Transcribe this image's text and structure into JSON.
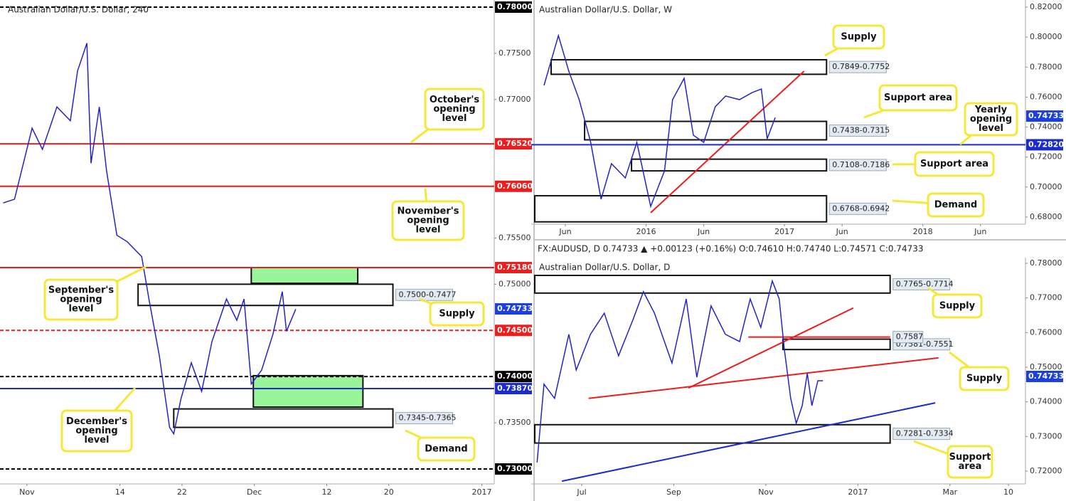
{
  "chart_data": [
    {
      "type": "line",
      "title": "Australian Dollar/U.S. Dollar, 240",
      "xlim": [
        -2.26,
        45.2
      ],
      "ylim": [
        0.72838,
        0.78077
      ],
      "xticks": [
        {
          "value": 0,
          "label": "Nov"
        },
        {
          "value": 9,
          "label": "14"
        },
        {
          "value": 15,
          "label": "22"
        },
        {
          "value": 22,
          "label": "Dec"
        },
        {
          "value": 29,
          "label": "12"
        },
        {
          "value": 35,
          "label": "20"
        },
        {
          "value": 44,
          "label": "2017"
        }
      ],
      "yticks": [
        {
          "value": 0.735,
          "label": "0.73500"
        },
        {
          "value": 0.75,
          "label": "0.75000"
        },
        {
          "value": 0.755,
          "label": "0.75500"
        },
        {
          "value": 0.77,
          "label": "0.77000"
        },
        {
          "value": 0.775,
          "label": "0.77500"
        }
      ],
      "series": [
        {
          "color": "#2323c8",
          "x": [
            -2.3,
            -1.2,
            0.5,
            1.5,
            2.9,
            4.2,
            4.9,
            5.8,
            6.2,
            7.0,
            7.7,
            8.7,
            9.7,
            11.1,
            11.8,
            12.8,
            13.8,
            14.2,
            14.9,
            15.9,
            16.9,
            17.9,
            19.3,
            20.3,
            21.0,
            21.7,
            22.7,
            23.8,
            24.7,
            25.1,
            26.0
          ],
          "values": [
            0.7588,
            0.7592,
            0.7669,
            0.7646,
            0.7692,
            0.7677,
            0.7731,
            0.7761,
            0.7631,
            0.7692,
            0.7623,
            0.7553,
            0.7546,
            0.753,
            0.7484,
            0.7423,
            0.7345,
            0.7338,
            0.7376,
            0.7415,
            0.7384,
            0.7438,
            0.7484,
            0.7461,
            0.7484,
            0.7392,
            0.7407,
            0.7446,
            0.7492,
            0.7449,
            0.7473
          ]
        }
      ],
      "levels": [
        {
          "value": 0.78,
          "label": "0.78000",
          "color": "#000000",
          "dashed": true
        },
        {
          "value": 0.7652,
          "label": "0.76520",
          "color": "#ee1c1c",
          "dashed": false
        },
        {
          "value": 0.7606,
          "label": "0.76060",
          "color": "#ee1c1c",
          "dashed": false
        },
        {
          "value": 0.7518,
          "label": "0.75180",
          "color": "#ee1c1c",
          "dashed": false
        },
        {
          "value": 0.745,
          "label": "0.74500",
          "color": "#ee1c1c",
          "dashed": true
        },
        {
          "value": 0.74,
          "label": "0.74000",
          "color": "#000000",
          "dashed": true
        },
        {
          "value": 0.7387,
          "label": "0.73870",
          "color": "#1c2ccc",
          "dashed": false
        },
        {
          "value": 0.73,
          "label": "0.73000",
          "color": "#000000",
          "dashed": true
        }
      ],
      "last_price": {
        "value": 0.74733,
        "label": "0.74733",
        "color": "#1c3fe0"
      },
      "zones": [
        {
          "x": [
            10.75,
            35.4
          ],
          "y": [
            0.75,
            0.7477
          ],
          "label": "0.7500-0.7477",
          "fill": "none"
        },
        {
          "x": [
            21.7,
            32.0
          ],
          "y": [
            0.7518,
            0.7501
          ],
          "fill": "#99f59a"
        },
        {
          "x": [
            21.9,
            32.5
          ],
          "y": [
            0.7401,
            0.7367
          ],
          "fill": "#99f59a"
        },
        {
          "x": [
            14.2,
            35.4
          ],
          "y": [
            0.7345,
            0.7365
          ],
          "label": "0.7345-0.7365",
          "fill": "none"
        }
      ],
      "callouts": [
        [
          "October's",
          "opening",
          "level"
        ],
        [
          "November's",
          "opening",
          "level"
        ],
        [
          "September's",
          "opening",
          "level"
        ],
        [
          "Supply"
        ],
        [
          "December's",
          "opening",
          "level"
        ],
        [
          "Demand"
        ]
      ]
    },
    {
      "type": "line",
      "title": "Australian Dollar/U.S. Dollar, W",
      "xlim": [
        -2.65,
        39.9
      ],
      "ylim": [
        0.67525,
        0.82475
      ],
      "xticks": [
        {
          "value": 0,
          "label": "Jun"
        },
        {
          "value": 7,
          "label": "2016"
        },
        {
          "value": 12,
          "label": "Jun"
        },
        {
          "value": 19,
          "label": "2017"
        },
        {
          "value": 24,
          "label": "Jun"
        },
        {
          "value": 31,
          "label": "2018"
        },
        {
          "value": 36,
          "label": "Jun"
        }
      ],
      "yticks": [
        {
          "value": 0.68,
          "label": "0.68000"
        },
        {
          "value": 0.7,
          "label": "0.70000"
        },
        {
          "value": 0.72,
          "label": "0.72000"
        },
        {
          "value": 0.74,
          "label": "0.74000"
        },
        {
          "value": 0.76,
          "label": "0.76000"
        },
        {
          "value": 0.78,
          "label": "0.78000"
        },
        {
          "value": 0.8,
          "label": "0.80000"
        },
        {
          "value": 0.82,
          "label": "0.82000"
        }
      ],
      "series": [
        {
          "color": "#2323c8",
          "x": [
            -1.85,
            -0.6,
            0.3,
            1.2,
            2.2,
            3.1,
            4.0,
            5.2,
            6.2,
            7.4,
            8.6,
            9.3,
            10.3,
            11.1,
            12.0,
            13.0,
            13.9,
            15.1,
            16.2,
            17.0,
            17.5,
            18.2
          ],
          "values": [
            0.7678,
            0.801,
            0.7773,
            0.7583,
            0.7298,
            0.6919,
            0.7156,
            0.7061,
            0.7298,
            0.6871,
            0.7108,
            0.7583,
            0.7725,
            0.7346,
            0.7298,
            0.7536,
            0.7607,
            0.7583,
            0.763,
            0.7654,
            0.7322,
            0.7464
          ]
        }
      ],
      "levels": [
        {
          "value": 0.7282,
          "label": "0.72820",
          "color": "#1c2ccc",
          "dashed": false
        }
      ],
      "last_price": {
        "value": 0.74733,
        "label": "0.74733",
        "color": "#1c3fe0"
      },
      "zones": [
        {
          "x": [
            -1.23,
            22.65
          ],
          "y": [
            0.7849,
            0.7752
          ],
          "label": "0.7849-0.7752",
          "fill": "none"
        },
        {
          "x": [
            1.67,
            22.65
          ],
          "y": [
            0.7438,
            0.7315
          ],
          "label": "0.7438-0.7315",
          "fill": "none"
        },
        {
          "x": [
            5.74,
            22.65
          ],
          "y": [
            0.7108,
            0.7186
          ],
          "label": "0.7108-0.7186",
          "fill": "none"
        },
        {
          "x": [
            -2.65,
            22.65
          ],
          "y": [
            0.6768,
            0.6942
          ],
          "label": "0.6768-0.6942",
          "fill": "none"
        }
      ],
      "trendlines": [
        {
          "x": [
            7.4,
            20.7
          ],
          "y": [
            0.6829,
            0.7773
          ],
          "color": "#ee1c1c"
        }
      ],
      "callouts": [
        [
          "Supply"
        ],
        [
          "Support area"
        ],
        [
          "Yearly",
          "opening",
          "level"
        ],
        [
          "Support area"
        ],
        [
          "Demand"
        ]
      ]
    },
    {
      "type": "line",
      "title": "Australian Dollar/U.S. Dollar, D",
      "subtitle": "FX:AUDUSD, D  0.74733 ▲ +0.00123 (+0.16%)  O:0.74610  H:0.74740  L:0.74571  C:0.74733",
      "xlim": [
        -1.02,
        9.64
      ],
      "ylim": [
        0.7163,
        0.78164
      ],
      "xticks": [
        {
          "value": 0,
          "label": "Jul"
        },
        {
          "value": 2,
          "label": "Sep"
        },
        {
          "value": 4,
          "label": "Nov"
        },
        {
          "value": 6,
          "label": "2017"
        },
        {
          "value": 8,
          "label": "Mar"
        },
        {
          "value": 9.27,
          "label": "10"
        }
      ],
      "yticks": [
        {
          "value": 0.72,
          "label": "0.72000"
        },
        {
          "value": 0.73,
          "label": "0.73000"
        },
        {
          "value": 0.74,
          "label": "0.74000"
        },
        {
          "value": 0.75,
          "label": "0.75000"
        },
        {
          "value": 0.76,
          "label": "0.76000"
        },
        {
          "value": 0.77,
          "label": "0.77000"
        },
        {
          "value": 0.78,
          "label": "0.78000"
        }
      ],
      "series": [
        {
          "color": "#2323c8",
          "x": [
            -0.97,
            -0.82,
            -0.59,
            -0.28,
            -0.12,
            0.19,
            0.49,
            0.8,
            1.11,
            1.34,
            1.58,
            1.96,
            2.27,
            2.5,
            2.81,
            3.12,
            3.43,
            3.66,
            3.89,
            4.14,
            4.29,
            4.4,
            4.54,
            4.66,
            4.79,
            4.9,
            5.0,
            5.13,
            5.24
          ],
          "values": [
            0.7225,
            0.7451,
            0.741,
            0.7595,
            0.7492,
            0.7595,
            0.7656,
            0.7533,
            0.7636,
            0.7718,
            0.7656,
            0.7512,
            0.7697,
            0.7471,
            0.7677,
            0.7595,
            0.7574,
            0.7697,
            0.7615,
            0.7749,
            0.7697,
            0.7553,
            0.741,
            0.7338,
            0.7389,
            0.7482,
            0.7389,
            0.7461,
            0.7461
          ]
        }
      ],
      "levels": [],
      "last_price": {
        "value": 0.74733,
        "label": "0.74733",
        "color": "#1c3fe0"
      },
      "segments": [
        {
          "x": [
            3.62,
            6.7
          ],
          "value": 0.7587,
          "label": "0.7587",
          "color": "#ee1c1c"
        }
      ],
      "zones": [
        {
          "x": [
            -1.02,
            6.7
          ],
          "y": [
            0.7765,
            0.7714
          ],
          "label": "0.7765-0.7714",
          "fill": "none"
        },
        {
          "x": [
            4.37,
            6.7
          ],
          "y": [
            0.7581,
            0.7551
          ],
          "label": "0.7581-0.7551",
          "fill": "none"
        },
        {
          "x": [
            -1.02,
            6.7
          ],
          "y": [
            0.7281,
            0.7334
          ],
          "label": "0.7281-0.7334",
          "fill": "none"
        }
      ],
      "trendlines": [
        {
          "x": [
            0.15,
            7.75
          ],
          "y": [
            0.741,
            0.7527
          ],
          "color": "#ee1c1c"
        },
        {
          "x": [
            2.32,
            5.9
          ],
          "y": [
            0.744,
            0.7671
          ],
          "color": "#ee1c1c"
        },
        {
          "x": [
            -0.43,
            7.68
          ],
          "y": [
            0.7171,
            0.7397
          ],
          "color": "#1c2ccc"
        }
      ],
      "callouts": [
        [
          "Supply"
        ],
        [
          "Supply"
        ],
        [
          "Support",
          "area"
        ]
      ]
    }
  ]
}
